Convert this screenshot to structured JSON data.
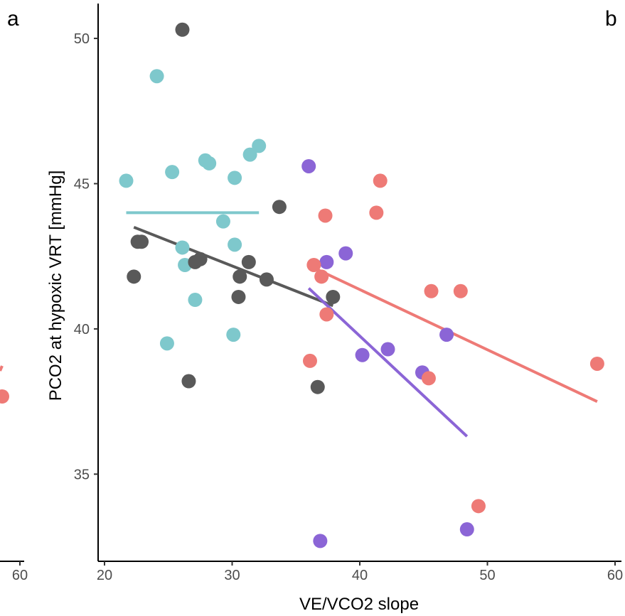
{
  "chart_data": {
    "type": "scatter",
    "title": "",
    "xlabel": "VE/VCO2 slope",
    "ylabel": "PCO2 at hypoxic VRT [mmHg]",
    "xlim": [
      19.5,
      60.5
    ],
    "ylim": [
      32,
      51.2
    ],
    "x_ticks": [
      20,
      30,
      40,
      50,
      60
    ],
    "y_ticks": [
      35,
      40,
      45,
      50
    ],
    "panel_labels": [
      "a",
      "b"
    ],
    "left_panel_fragment": {
      "x_tick_labels": [
        "60"
      ],
      "points": [
        {
          "x": 60,
          "y": 37.6,
          "color": "#ee7a76"
        }
      ]
    },
    "grid": false,
    "legend": "none",
    "series": [
      {
        "color": "#7ec8cc",
        "points": [
          [
            21.7,
            45.1
          ],
          [
            24.1,
            48.7
          ],
          [
            25.3,
            45.4
          ],
          [
            26.1,
            42.8
          ],
          [
            26.3,
            42.2
          ],
          [
            27.1,
            41.0
          ],
          [
            24.9,
            39.5
          ],
          [
            27.9,
            45.8
          ],
          [
            28.2,
            45.7
          ],
          [
            29.3,
            43.7
          ],
          [
            30.2,
            45.2
          ],
          [
            30.2,
            42.9
          ],
          [
            30.1,
            39.8
          ],
          [
            31.4,
            46.0
          ],
          [
            32.1,
            46.3
          ]
        ],
        "trend": [
          [
            21.7,
            44.0
          ],
          [
            32.1,
            44.0
          ]
        ]
      },
      {
        "color": "#595959",
        "points": [
          [
            22.3,
            41.8
          ],
          [
            22.6,
            43.0
          ],
          [
            22.9,
            43.0
          ],
          [
            26.1,
            50.3
          ],
          [
            26.6,
            38.2
          ],
          [
            27.1,
            42.3
          ],
          [
            27.5,
            42.4
          ],
          [
            30.6,
            41.8
          ],
          [
            30.5,
            41.1
          ],
          [
            31.3,
            42.3
          ],
          [
            32.7,
            41.7
          ],
          [
            33.7,
            44.2
          ],
          [
            36.7,
            38.0
          ],
          [
            37.9,
            41.1
          ]
        ],
        "trend": [
          [
            22.3,
            43.5
          ],
          [
            37.9,
            40.8
          ]
        ]
      },
      {
        "color": "#8b65d6",
        "points": [
          [
            36.0,
            45.6
          ],
          [
            37.4,
            42.3
          ],
          [
            38.9,
            42.6
          ],
          [
            36.9,
            32.7
          ],
          [
            40.2,
            39.1
          ],
          [
            42.2,
            39.3
          ],
          [
            44.9,
            38.5
          ],
          [
            46.8,
            39.8
          ],
          [
            48.4,
            33.1
          ]
        ],
        "trend": [
          [
            36.0,
            41.4
          ],
          [
            48.4,
            36.3
          ]
        ]
      },
      {
        "color": "#ee7a76",
        "points": [
          [
            36.1,
            38.9
          ],
          [
            36.4,
            42.2
          ],
          [
            37.0,
            41.8
          ],
          [
            37.3,
            43.9
          ],
          [
            37.4,
            40.5
          ],
          [
            41.3,
            44.0
          ],
          [
            41.6,
            45.1
          ],
          [
            45.4,
            38.3
          ],
          [
            45.6,
            41.3
          ],
          [
            47.9,
            41.3
          ],
          [
            49.3,
            33.9
          ],
          [
            58.6,
            38.8
          ]
        ],
        "trend": [
          [
            36.4,
            42.1
          ],
          [
            58.6,
            37.5
          ]
        ]
      }
    ]
  }
}
